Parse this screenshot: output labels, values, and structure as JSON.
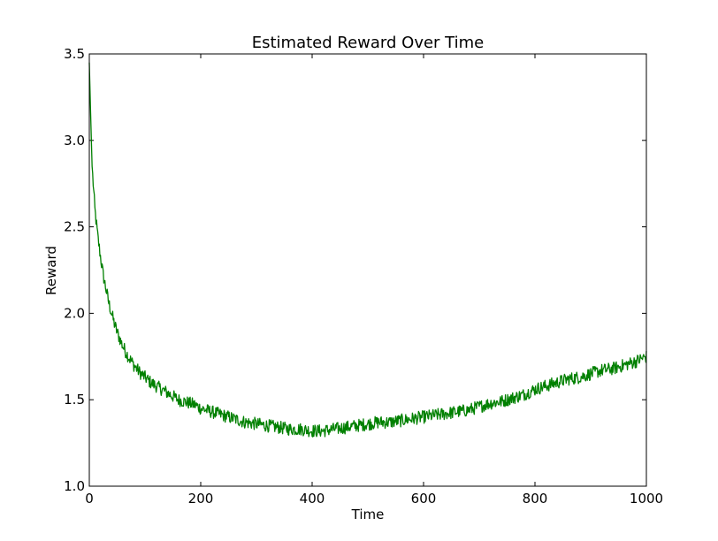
{
  "chart_data": {
    "type": "line",
    "title": "Estimated Reward Over Time",
    "xlabel": "Time",
    "ylabel": "Reward",
    "xlim": [
      0,
      1000
    ],
    "ylim": [
      1.0,
      3.5
    ],
    "xticks": [
      0,
      200,
      400,
      600,
      800,
      1000
    ],
    "xtick_labels": [
      "0",
      "200",
      "400",
      "600",
      "800",
      "1000"
    ],
    "yticks": [
      1.0,
      1.5,
      2.0,
      2.5,
      3.0,
      3.5
    ],
    "ytick_labels": [
      "1.0",
      "1.5",
      "2.0",
      "2.5",
      "3.0",
      "3.5"
    ],
    "grid": false,
    "legend": "none",
    "series": [
      {
        "color": "#008000",
        "x": [
          0,
          2,
          5,
          10,
          15,
          20,
          25,
          30,
          35,
          40,
          45,
          50,
          55,
          60,
          70,
          80,
          90,
          100,
          110,
          120,
          130,
          140,
          150,
          160,
          170,
          180,
          190,
          200,
          220,
          240,
          260,
          280,
          300,
          320,
          340,
          360,
          380,
          400,
          420,
          440,
          460,
          480,
          500,
          520,
          540,
          560,
          580,
          600,
          620,
          640,
          660,
          680,
          700,
          720,
          740,
          760,
          780,
          800,
          820,
          840,
          860,
          880,
          900,
          920,
          940,
          960,
          980,
          1000
        ],
        "values": [
          3.45,
          3.2,
          2.85,
          2.6,
          2.45,
          2.33,
          2.22,
          2.14,
          2.06,
          2.0,
          1.94,
          1.89,
          1.85,
          1.81,
          1.75,
          1.7,
          1.66,
          1.63,
          1.6,
          1.58,
          1.56,
          1.54,
          1.52,
          1.5,
          1.49,
          1.48,
          1.47,
          1.45,
          1.43,
          1.41,
          1.39,
          1.37,
          1.36,
          1.35,
          1.34,
          1.33,
          1.33,
          1.32,
          1.32,
          1.33,
          1.34,
          1.35,
          1.36,
          1.37,
          1.37,
          1.38,
          1.39,
          1.4,
          1.41,
          1.42,
          1.43,
          1.44,
          1.46,
          1.48,
          1.49,
          1.51,
          1.53,
          1.56,
          1.58,
          1.6,
          1.62,
          1.63,
          1.65,
          1.67,
          1.68,
          1.7,
          1.72,
          1.75
        ]
      }
    ]
  }
}
